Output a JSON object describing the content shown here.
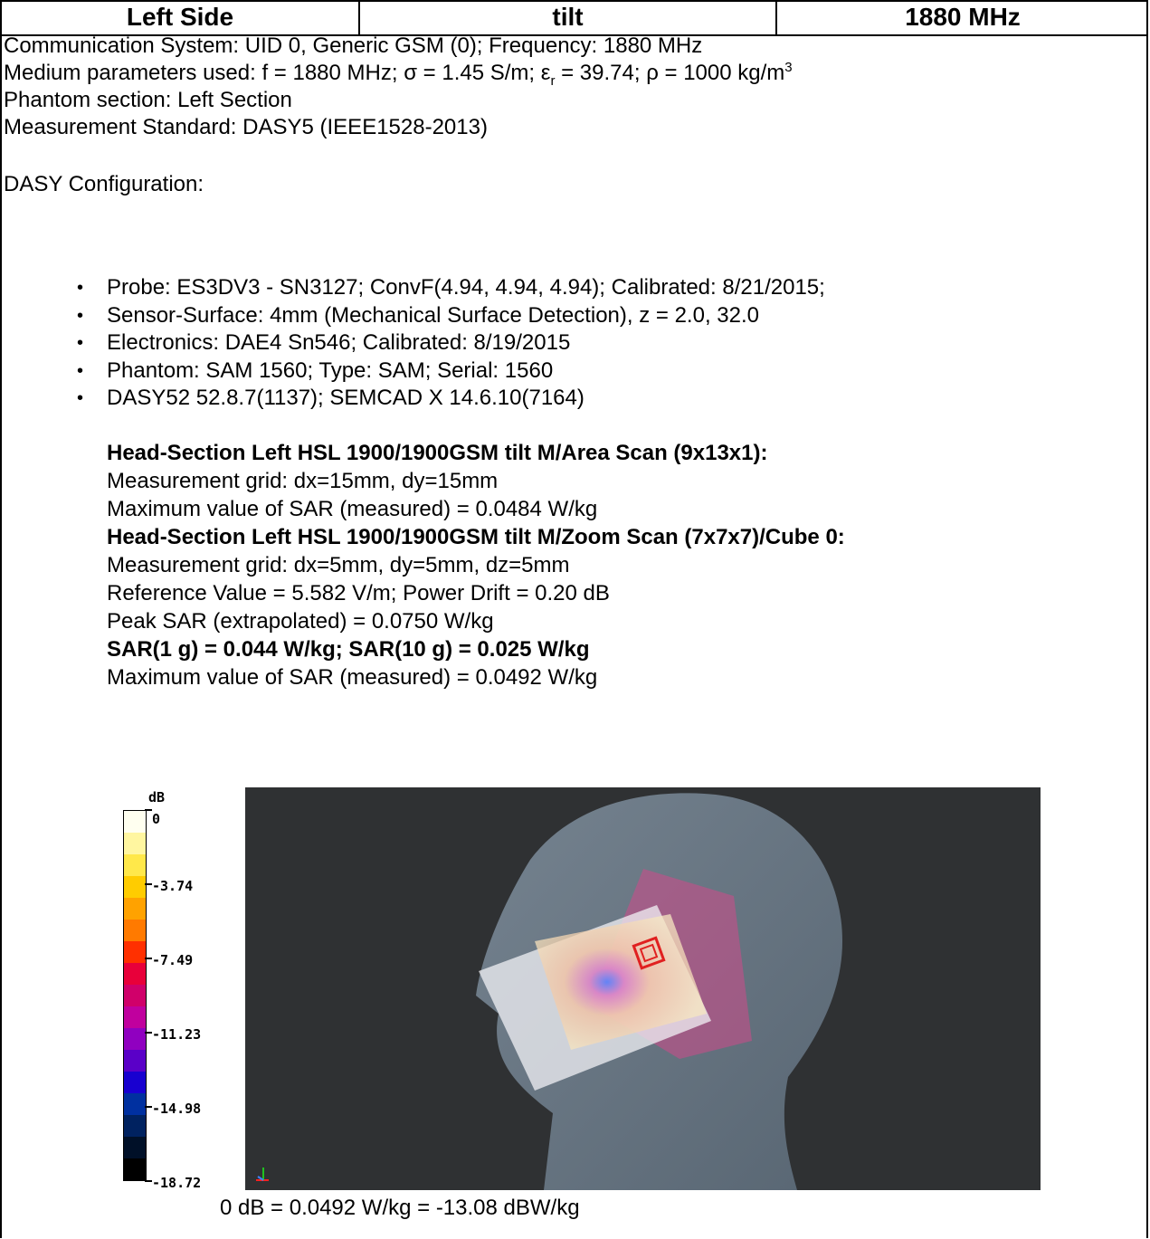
{
  "header": {
    "col1": "Left Side",
    "col2": "tilt",
    "col3": "1880 MHz"
  },
  "info": {
    "communication": "Communication System: UID 0, Generic GSM (0); Frequency: 1880 MHz",
    "medium_prefix": "Medium parameters used: f = 1880 MHz; σ = 1.45 S/m; ε",
    "medium_sub": "r",
    "medium_mid": " = 39.74; ρ = 1000 kg/m",
    "medium_sup": "3",
    "phantom_section": "Phantom section: Left Section",
    "standard": "Measurement Standard: DASY5 (IEEE1528-2013)"
  },
  "config": {
    "title": "DASY Configuration:",
    "items": [
      "Probe: ES3DV3 - SN3127; ConvF(4.94, 4.94, 4.94); Calibrated: 8/21/2015;",
      "Sensor-Surface: 4mm (Mechanical Surface Detection), z = 2.0, 32.0",
      "Electronics: DAE4 Sn546; Calibrated: 8/19/2015",
      "Phantom: SAM 1560; Type: SAM; Serial: 1560",
      "DASY52 52.8.7(1137); SEMCAD X 14.6.10(7164)"
    ]
  },
  "area_scan": {
    "heading": "Head-Section Left HSL 1900/1900GSM tilt M/Area Scan (9x13x1):",
    "grid": "Measurement grid: dx=15mm, dy=15mm",
    "max": "Maximum value of SAR (measured) = 0.0484 W/kg"
  },
  "zoom_scan": {
    "heading": "Head-Section Left HSL 1900/1900GSM tilt M/Zoom Scan (7x7x7)/Cube 0:",
    "grid": "Measurement grid: dx=5mm, dy=5mm, dz=5mm",
    "reference": "Reference Value = 5.582 V/m; Power Drift = 0.20 dB",
    "peak": "Peak SAR (extrapolated) = 0.0750 W/kg",
    "sar": "SAR(1 g) = 0.044 W/kg; SAR(10 g) = 0.025 W/kg",
    "max": "Maximum value of SAR (measured) = 0.0492 W/kg"
  },
  "legend": {
    "unit": "dB",
    "ticks": [
      "0",
      "-3.74",
      "-7.49",
      "-11.23",
      "-14.98",
      "-18.72"
    ],
    "colors": [
      "#fffff0",
      "#fff6a0",
      "#ffe84a",
      "#ffcc00",
      "#ffa200",
      "#ff7a00",
      "#ff3000",
      "#e8003a",
      "#d0006a",
      "#c0009e",
      "#9000c0",
      "#5a00c8",
      "#1800d0",
      "#0030a0",
      "#002260",
      "#001028",
      "#000000"
    ]
  },
  "caption": "0 dB = 0.0492 W/kg = -13.08 dBW/kg"
}
